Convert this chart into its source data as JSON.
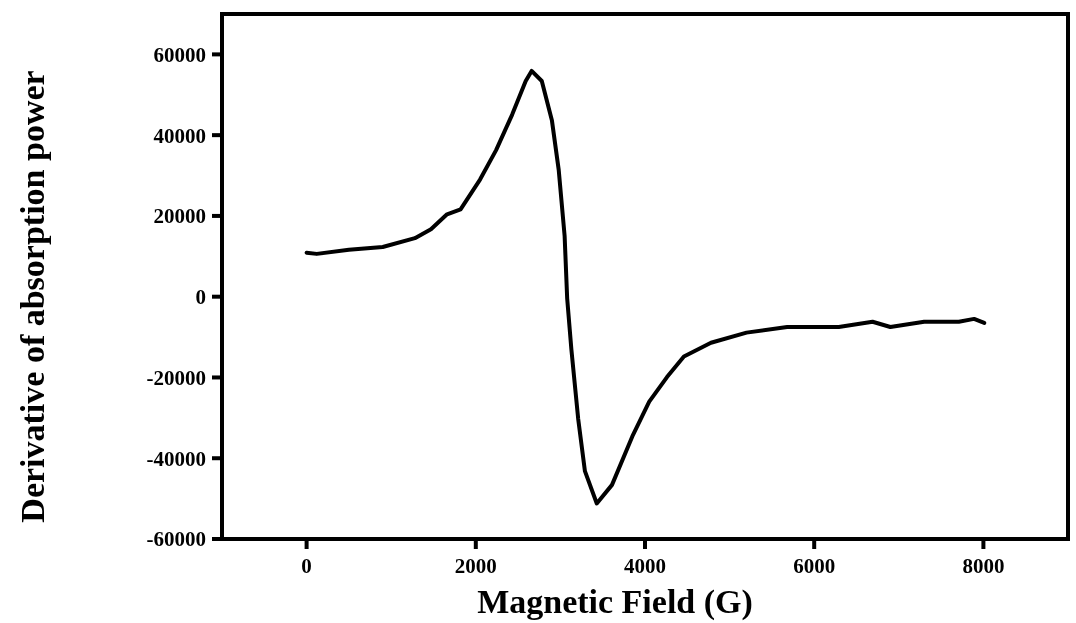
{
  "chart_data": {
    "type": "line",
    "xlabel": "Magnetic Field (G)",
    "ylabel": "Derivative of absorption power",
    "xlim": [
      -1000,
      9000
    ],
    "xticks": [
      0,
      2000,
      4000,
      6000,
      8000
    ],
    "ylim": [
      -60000,
      70000
    ],
    "yticks": [
      -60000,
      -40000,
      -20000,
      0,
      20000,
      40000,
      60000
    ],
    "grid": false,
    "marker": "none",
    "line_style": "solid",
    "series": [
      {
        "color": "#000000",
        "x": [
          0,
          120,
          500,
          900,
          1280,
          1470,
          1660,
          1820,
          2050,
          2240,
          2430,
          2590,
          2660,
          2780,
          2900,
          2980,
          3050,
          3080,
          3130,
          3210,
          3290,
          3430,
          3610,
          3850,
          4050,
          4260,
          4460,
          4780,
          5200,
          5680,
          6290,
          6690,
          6900,
          7300,
          7710,
          7890,
          8010
        ],
        "values": [
          10900,
          10600,
          11600,
          12300,
          14500,
          16700,
          20400,
          21600,
          29000,
          36300,
          45100,
          53400,
          55900,
          53400,
          43600,
          31400,
          15000,
          -400,
          -13100,
          -30200,
          -43200,
          -51200,
          -46600,
          -34600,
          -26000,
          -19900,
          -14800,
          -11400,
          -8900,
          -7500,
          -7500,
          -6200,
          -7500,
          -6200,
          -6200,
          -5500,
          -6500
        ]
      }
    ]
  }
}
